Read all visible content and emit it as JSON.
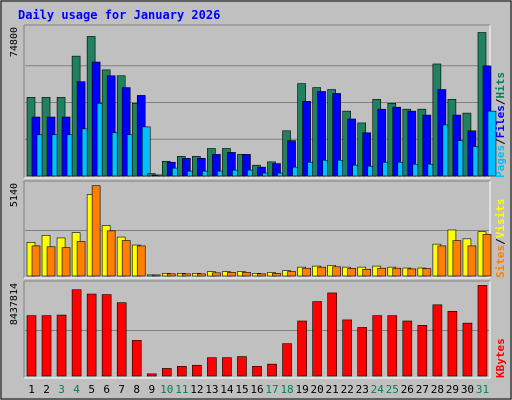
{
  "chart_data": {
    "type": "bar",
    "title": "Daily usage for January 2026",
    "categories": [
      "1",
      "2",
      "3",
      "4",
      "5",
      "6",
      "7",
      "8",
      "9",
      "10",
      "11",
      "12",
      "13",
      "14",
      "15",
      "16",
      "17",
      "18",
      "19",
      "20",
      "21",
      "22",
      "23",
      "24",
      "25",
      "26",
      "27",
      "28",
      "29",
      "30",
      "31"
    ],
    "weekend_days": [
      3,
      4,
      10,
      11,
      17,
      18,
      24,
      25,
      31
    ],
    "panels": [
      {
        "key": "hits_files_pages",
        "ymax": 74800,
        "ymax_label": "74800",
        "legend": [
          {
            "name": "Pages",
            "color": "#00c0ff"
          },
          {
            "name": "Files",
            "color": "#0000ff"
          },
          {
            "name": "Hits",
            "color": "#00805c"
          }
        ],
        "series": [
          {
            "name": "Hits",
            "color": "#208060",
            "values": [
              40000,
              40000,
              40000,
              61000,
              71000,
              54000,
              51000,
              37000,
              1200,
              7500,
              10000,
              10000,
              14000,
              14000,
              11000,
              5500,
              7200,
              23000,
              47000,
              45000,
              44000,
              33000,
              27000,
              39000,
              37000,
              34000,
              34000,
              57000,
              39000,
              32000,
              73000
            ]
          },
          {
            "name": "Files",
            "color": "#0000ff",
            "values": [
              30000,
              30000,
              30000,
              48000,
              58000,
              51000,
              45000,
              41000,
              300,
              7000,
              9000,
              9000,
              11000,
              12000,
              11000,
              4500,
              6300,
              18000,
              38000,
              43000,
              42000,
              29000,
              22000,
              34000,
              35000,
              33000,
              31000,
              44000,
              31000,
              23000,
              56000
            ]
          },
          {
            "name": "Pages",
            "color": "#00c0ff",
            "values": [
              21000,
              21000,
              21000,
              24000,
              37000,
              22000,
              21000,
              25000,
              200,
              4000,
              2500,
              2500,
              2500,
              3000,
              3000,
              1500,
              1500,
              4500,
              7000,
              8000,
              8000,
              5500,
              5000,
              7000,
              7000,
              6000,
              6000,
              26000,
              18000,
              15000,
              33000
            ]
          }
        ]
      },
      {
        "key": "visits_sites",
        "ymax": 5140,
        "ymax_label": "5140",
        "legend": [
          {
            "name": "Sites",
            "color": "#ff8000"
          },
          {
            "name": "Visits",
            "color": "#ffff00"
          }
        ],
        "series": [
          {
            "name": "Visits",
            "color": "#ffff00",
            "values": [
              1900,
              2300,
              2150,
              2450,
              4600,
              2850,
              2200,
              1750,
              60,
              150,
              150,
              150,
              250,
              250,
              250,
              150,
              200,
              300,
              500,
              560,
              600,
              500,
              500,
              560,
              500,
              450,
              450,
              1800,
              2600,
              2100,
              2500
            ]
          },
          {
            "name": "Sites",
            "color": "#ff8000",
            "values": [
              1700,
              1650,
              1600,
              1950,
              5100,
              2550,
              2000,
              1700,
              60,
              120,
              120,
              120,
              180,
              210,
              210,
              120,
              150,
              250,
              440,
              500,
              520,
              430,
              380,
              440,
              440,
              400,
              420,
              1700,
              2000,
              1700,
              2350
            ]
          }
        ]
      },
      {
        "key": "kbytes",
        "ymax": 8437814,
        "ymax_label": "8437814",
        "legend": [
          {
            "name": "KBytes",
            "color": "#ff0000"
          }
        ],
        "series": [
          {
            "name": "KBytes",
            "color": "#ff0000",
            "values": [
              5600000,
              5600000,
              5650000,
              8000000,
              7600000,
              7550000,
              6800000,
              3300000,
              200000,
              700000,
              900000,
              1000000,
              1700000,
              1700000,
              1800000,
              900000,
              1100000,
              3000000,
              5100000,
              6900000,
              7700000,
              5200000,
              4500000,
              5600000,
              5600000,
              5100000,
              4700000,
              6600000,
              6000000,
              4900000,
              8400000
            ]
          }
        ]
      }
    ]
  }
}
